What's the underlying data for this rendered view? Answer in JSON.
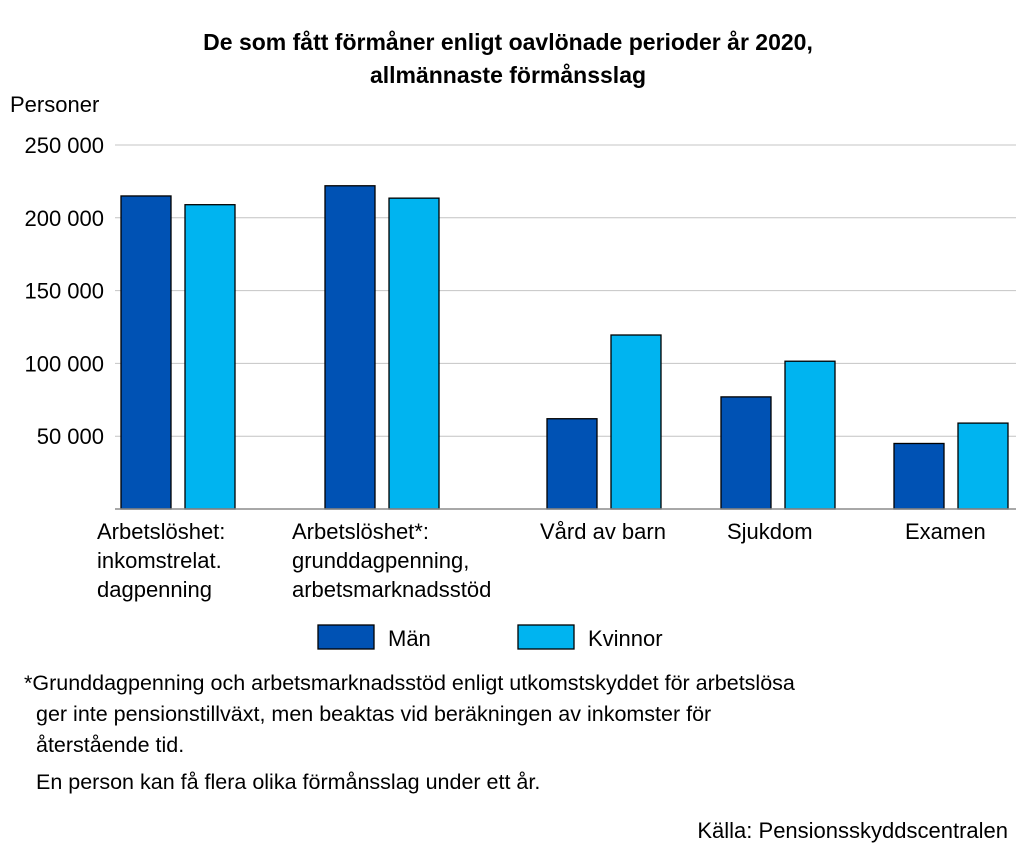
{
  "chart_data": {
    "type": "bar",
    "title": [
      "De som fått förmåner enligt oavlönade perioder år 2020,",
      "allmännaste förmånsslag"
    ],
    "ylabel": "Personer",
    "ylim": [
      0,
      250000
    ],
    "yticks": [
      50000,
      100000,
      150000,
      200000,
      250000
    ],
    "ytick_labels": [
      "50 000",
      "100 000",
      "150 000",
      "200 000",
      "250 000"
    ],
    "grid": true,
    "legend_placement": "bottom-center",
    "categories": [
      [
        "Arbetslöshet:",
        "inkomstrelat.",
        "dagpenning"
      ],
      [
        "Arbetslöshet*:",
        "grunddagpenning,",
        "arbetsmarknadsstöd"
      ],
      [
        "Vård av barn"
      ],
      [
        "Sjukdom"
      ],
      [
        "Examen"
      ]
    ],
    "series": [
      {
        "name": "Män",
        "color": "#0052b4",
        "values": [
          215000,
          222000,
          62000,
          77000,
          45000
        ]
      },
      {
        "name": "Kvinnor",
        "color": "#00b4f0",
        "values": [
          209000,
          213500,
          119500,
          101500,
          59000
        ]
      }
    ]
  },
  "notes": {
    "footnote_lines": [
      "*Grunddagpenning och arbetsmarknadsstöd enligt utkomstskyddet för arbetslösa",
      "ger inte pensionstillväxt, men beaktas vid beräkningen av inkomster för",
      "återstående tid."
    ],
    "remark": "En person kan få flera olika förmånsslag under ett år.",
    "source": "Källa: Pensionsskyddscentralen"
  }
}
